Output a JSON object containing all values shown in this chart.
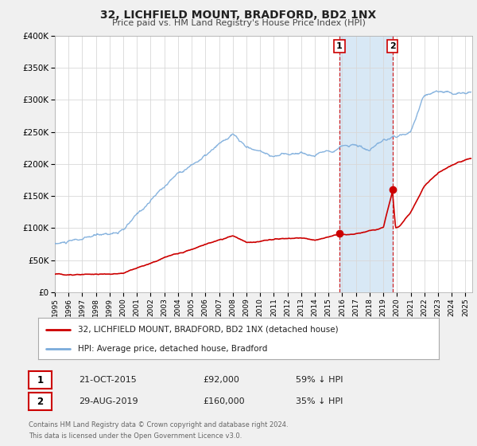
{
  "title": "32, LICHFIELD MOUNT, BRADFORD, BD2 1NX",
  "subtitle": "Price paid vs. HM Land Registry's House Price Index (HPI)",
  "legend_entries": [
    "32, LICHFIELD MOUNT, BRADFORD, BD2 1NX (detached house)",
    "HPI: Average price, detached house, Bradford"
  ],
  "annotation1_date": "21-OCT-2015",
  "annotation1_price": "£92,000",
  "annotation1_hpi": "59% ↓ HPI",
  "annotation1_year": 2015.8,
  "annotation1_value": 92000,
  "annotation2_date": "29-AUG-2019",
  "annotation2_price": "£160,000",
  "annotation2_hpi": "35% ↓ HPI",
  "annotation2_year": 2019.67,
  "annotation2_value": 160000,
  "footer1": "Contains HM Land Registry data © Crown copyright and database right 2024.",
  "footer2": "This data is licensed under the Open Government Licence v3.0.",
  "ylim": [
    0,
    400000
  ],
  "xlim_start": 1995.0,
  "xlim_end": 2025.5,
  "red_color": "#cc0000",
  "blue_color": "#7aabdb",
  "shade_color": "#d8e8f5",
  "background_color": "#f0f0f0",
  "plot_bg_color": "#ffffff",
  "grid_color": "#d8d8d8"
}
